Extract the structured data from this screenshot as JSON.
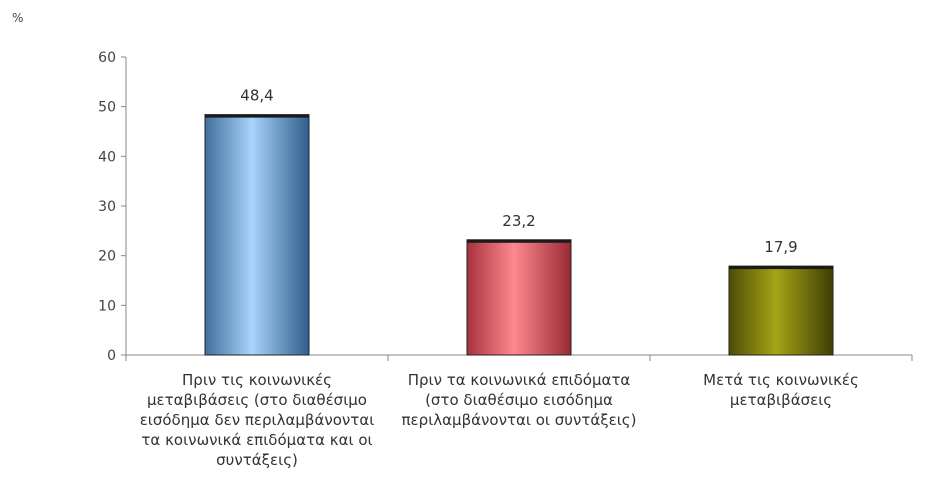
{
  "chart_data": {
    "type": "bar",
    "unit_label": "%",
    "categories": [
      "Πριν τις κοινωνικές\nμεταβιβάσεις (στο διαθέσιμο\nεισόδημα δεν περιλαμβάνονται\nτα κοινωνικά επιδόματα και οι\nσυντάξεις)",
      "Πριν τα κοινωνικά επιδόματα\n(στο διαθέσιμο εισόδημα\nπεριλαμβάνονται οι συντάξεις)",
      "Μετά τις κοινωνικές\nμεταβιβάσεις"
    ],
    "values": [
      48.4,
      23.2,
      17.9
    ],
    "value_labels": [
      "48,4",
      "23,2",
      "17,9"
    ],
    "bar_colors": [
      "#8fc0ee",
      "#f07a82",
      "#8c8a10"
    ],
    "ylim": [
      0,
      60
    ],
    "yticks": [
      0,
      10,
      20,
      30,
      40,
      50,
      60
    ],
    "grid": false,
    "legend": "none"
  }
}
